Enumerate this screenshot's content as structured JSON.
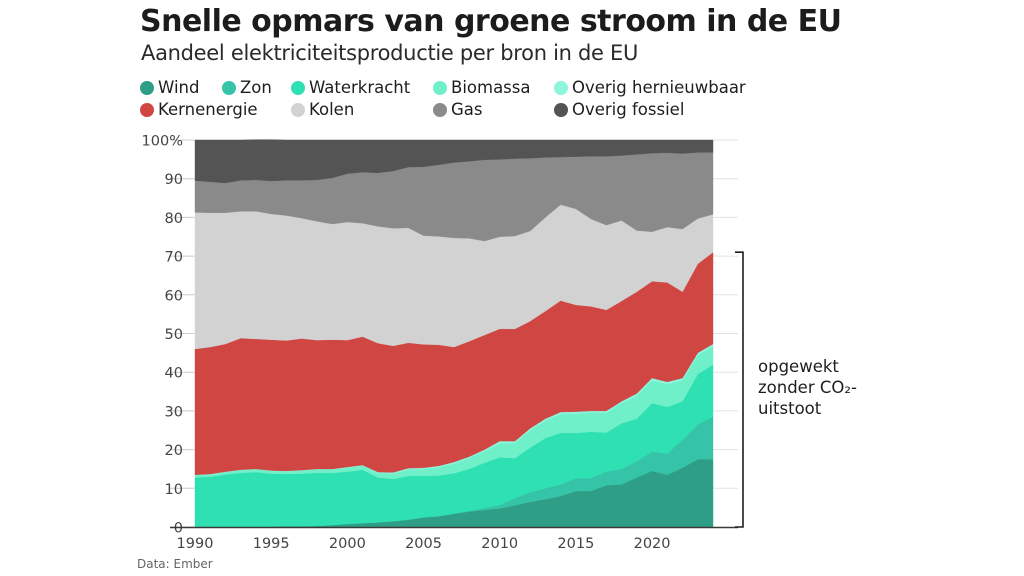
{
  "header": {
    "title": "Snelle opmars van groene stroom in de EU",
    "subtitle": "Aandeel elektriciteitsproductie per bron in de EU"
  },
  "legend": [
    {
      "label": "Wind",
      "color": "#2e9e86"
    },
    {
      "label": "Zon",
      "color": "#36c4a8"
    },
    {
      "label": "Waterkracht",
      "color": "#2ee0b2"
    },
    {
      "label": "Biomassa",
      "color": "#6ff0c8"
    },
    {
      "label": "Overig hernieuwbaar",
      "color": "#8cf5dd"
    },
    {
      "label": "Kernenergie",
      "color": "#cf4643"
    },
    {
      "label": "Kolen",
      "color": "#d2d2d2"
    },
    {
      "label": "Gas",
      "color": "#8a8a8a"
    },
    {
      "label": "Overig fossiel",
      "color": "#545454"
    }
  ],
  "annotation": {
    "line1": "opgewekt",
    "line2": "zonder CO₂-",
    "line3": "uitstoot"
  },
  "source": "Data: Ember",
  "chart_data": {
    "type": "area",
    "stacked": true,
    "title": "Snelle opmars van groene stroom in de EU",
    "subtitle": "Aandeel elektriciteitsproductie per bron in de EU",
    "xlabel": "",
    "ylabel": "",
    "x": [
      1990,
      1991,
      1992,
      1993,
      1994,
      1995,
      1996,
      1997,
      1998,
      1999,
      2000,
      2001,
      2002,
      2003,
      2004,
      2005,
      2006,
      2007,
      2008,
      2009,
      2010,
      2011,
      2012,
      2013,
      2014,
      2015,
      2016,
      2017,
      2018,
      2019,
      2020,
      2021,
      2022,
      2023,
      2024
    ],
    "xlim": [
      1990,
      2024
    ],
    "ylim": [
      0,
      100
    ],
    "x_ticks": [
      1990,
      1995,
      2000,
      2005,
      2010,
      2015,
      2020
    ],
    "x_tick_labels": [
      "1990",
      "1995",
      "2000",
      "2005",
      "2010",
      "2015",
      "2020"
    ],
    "y_ticks": [
      0,
      10,
      20,
      30,
      40,
      50,
      60,
      70,
      80,
      90,
      100
    ],
    "y_tick_labels": [
      "0",
      "10",
      "20",
      "30",
      "40",
      "50",
      "60",
      "70",
      "80",
      "90",
      "100%"
    ],
    "grid": true,
    "legend_position": "top",
    "series": [
      {
        "name": "Wind",
        "values": [
          0.0,
          0.0,
          0.0,
          0.1,
          0.1,
          0.1,
          0.2,
          0.2,
          0.3,
          0.5,
          0.8,
          1.0,
          1.2,
          1.5,
          1.9,
          2.5,
          2.8,
          3.4,
          4.0,
          4.4,
          4.8,
          5.6,
          6.5,
          7.2,
          8.0,
          9.3,
          9.3,
          10.8,
          11.0,
          12.8,
          14.5,
          13.5,
          15.3,
          17.5,
          17.5
        ]
      },
      {
        "name": "Zon",
        "values": [
          0.0,
          0.0,
          0.0,
          0.0,
          0.0,
          0.0,
          0.0,
          0.0,
          0.0,
          0.0,
          0.0,
          0.0,
          0.0,
          0.0,
          0.0,
          0.0,
          0.0,
          0.1,
          0.2,
          0.5,
          0.9,
          1.9,
          2.5,
          2.8,
          3.0,
          3.3,
          3.3,
          3.6,
          4.0,
          4.2,
          5.0,
          5.5,
          7.2,
          9.0,
          11.0
        ]
      },
      {
        "name": "Waterkracht",
        "values": [
          12.8,
          13.0,
          13.6,
          13.9,
          14.1,
          13.7,
          13.5,
          13.6,
          13.7,
          13.5,
          13.5,
          13.8,
          11.6,
          10.9,
          11.3,
          10.7,
          10.5,
          10.4,
          10.8,
          11.7,
          12.3,
          10.3,
          11.5,
          13.0,
          13.3,
          11.7,
          12.0,
          10.0,
          11.8,
          11.0,
          12.5,
          12.0,
          10.0,
          13.0,
          13.5
        ]
      },
      {
        "name": "Biomassa",
        "values": [
          0.6,
          0.6,
          0.6,
          0.7,
          0.7,
          0.7,
          0.7,
          0.8,
          0.9,
          0.9,
          1.0,
          1.0,
          1.2,
          1.4,
          1.7,
          1.8,
          2.1,
          2.5,
          2.8,
          3.0,
          3.6,
          3.9,
          4.5,
          4.5,
          4.9,
          5.0,
          5.0,
          5.1,
          5.2,
          5.9,
          5.9,
          5.9,
          5.4,
          4.9,
          4.7
        ]
      },
      {
        "name": "Overig hernieuwbaar",
        "values": [
          0.1,
          0.1,
          0.1,
          0.1,
          0.1,
          0.1,
          0.1,
          0.1,
          0.1,
          0.1,
          0.2,
          0.2,
          0.2,
          0.3,
          0.3,
          0.3,
          0.4,
          0.4,
          0.4,
          0.4,
          0.6,
          0.5,
          0.5,
          0.5,
          0.5,
          0.5,
          0.4,
          0.5,
          0.5,
          0.6,
          0.6,
          0.6,
          0.6,
          0.6,
          0.6
        ]
      },
      {
        "name": "Kernenergie",
        "values": [
          32.5,
          32.8,
          33.0,
          34.0,
          33.6,
          33.8,
          33.7,
          34.0,
          33.3,
          33.4,
          32.8,
          33.2,
          33.3,
          32.7,
          32.4,
          31.9,
          31.3,
          29.7,
          29.8,
          29.6,
          29.0,
          29.0,
          27.7,
          27.8,
          28.8,
          27.6,
          27.0,
          26.1,
          25.9,
          26.3,
          25.0,
          25.7,
          22.3,
          23.0,
          23.7
        ]
      },
      {
        "name": "Kolen",
        "values": [
          35.3,
          34.7,
          33.9,
          32.8,
          33.0,
          32.5,
          32.3,
          31.1,
          30.7,
          29.9,
          30.5,
          29.3,
          30.2,
          30.4,
          29.7,
          28.1,
          28.0,
          28.2,
          26.6,
          24.3,
          23.8,
          24.0,
          23.3,
          24.2,
          24.8,
          24.8,
          22.6,
          21.9,
          20.8,
          15.8,
          12.8,
          14.3,
          16.2,
          11.7,
          9.8
        ]
      },
      {
        "name": "Gas",
        "values": [
          8.2,
          8.0,
          7.7,
          8.0,
          8.1,
          8.5,
          9.1,
          9.8,
          10.7,
          11.9,
          12.5,
          13.2,
          13.8,
          14.8,
          15.7,
          17.8,
          18.5,
          19.5,
          19.9,
          21.0,
          20.0,
          20.0,
          18.8,
          15.5,
          12.3,
          13.5,
          16.2,
          17.8,
          16.8,
          19.7,
          20.3,
          19.2,
          19.5,
          17.1,
          16.0
        ]
      },
      {
        "name": "Overig fossiel",
        "values": [
          10.5,
          10.8,
          11.1,
          10.4,
          10.4,
          10.7,
          10.4,
          10.4,
          10.3,
          9.8,
          8.7,
          8.3,
          8.5,
          8.0,
          7.0,
          6.9,
          6.4,
          5.8,
          5.5,
          5.1,
          5.0,
          4.8,
          4.7,
          4.5,
          4.4,
          4.3,
          4.2,
          4.2,
          4.0,
          3.7,
          3.4,
          3.3,
          3.5,
          3.2,
          3.2
        ]
      }
    ],
    "annotations": [
      {
        "text": "opgewekt zonder CO₂-uitstoot",
        "spans": "Wind through Kernenergie (0–71% in 2024)"
      }
    ],
    "source": "Data: Ember"
  }
}
